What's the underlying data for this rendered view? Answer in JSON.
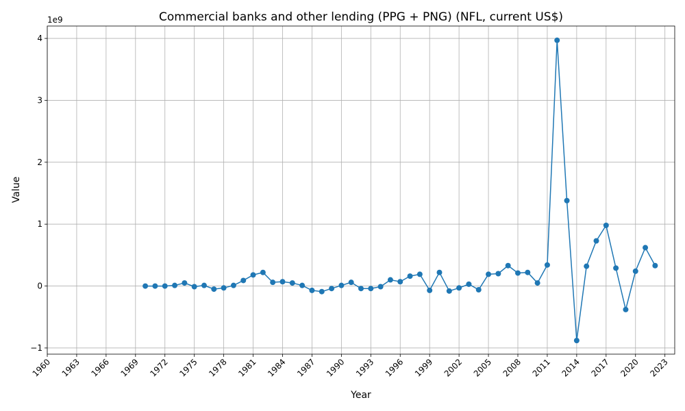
{
  "chart_data": {
    "type": "line",
    "title": "Commercial banks and other lending (PPG + PNG) (NFL, current US$)",
    "xlabel": "Year",
    "ylabel": "Value",
    "y_offset_label": "1e9",
    "xlim": [
      1960,
      2024
    ],
    "ylim": [
      -1.1,
      4.2
    ],
    "x_ticks": [
      1960,
      1963,
      1966,
      1969,
      1972,
      1975,
      1978,
      1981,
      1984,
      1987,
      1990,
      1993,
      1996,
      1999,
      2002,
      2005,
      2008,
      2011,
      2014,
      2017,
      2020,
      2023
    ],
    "y_ticks": [
      -1,
      0,
      1,
      2,
      3,
      4
    ],
    "grid": true,
    "series": [
      {
        "color": "#1f77b4",
        "x": [
          1970,
          1971,
          1972,
          1973,
          1974,
          1975,
          1976,
          1977,
          1978,
          1979,
          1980,
          1981,
          1982,
          1983,
          1984,
          1985,
          1986,
          1987,
          1988,
          1989,
          1990,
          1991,
          1992,
          1993,
          1994,
          1995,
          1996,
          1997,
          1998,
          1999,
          2000,
          2001,
          2002,
          2003,
          2004,
          2005,
          2006,
          2007,
          2008,
          2009,
          2010,
          2011,
          2012,
          2013,
          2014,
          2015,
          2016,
          2017,
          2018,
          2019,
          2020,
          2021,
          2022
        ],
        "values": [
          0.0,
          0.0,
          0.0,
          0.01,
          0.05,
          -0.01,
          0.01,
          -0.05,
          -0.03,
          0.01,
          0.09,
          0.18,
          0.22,
          0.06,
          0.07,
          0.05,
          0.01,
          -0.07,
          -0.09,
          -0.04,
          0.01,
          0.06,
          -0.04,
          -0.04,
          -0.01,
          0.1,
          0.07,
          0.16,
          0.19,
          -0.07,
          0.22,
          -0.08,
          -0.03,
          0.03,
          -0.06,
          0.19,
          0.2,
          0.33,
          0.21,
          0.22,
          0.05,
          0.34,
          3.97,
          1.38,
          -0.88,
          0.32,
          0.73,
          0.98,
          0.29,
          -0.38,
          0.24,
          0.62,
          0.33
        ]
      }
    ]
  }
}
